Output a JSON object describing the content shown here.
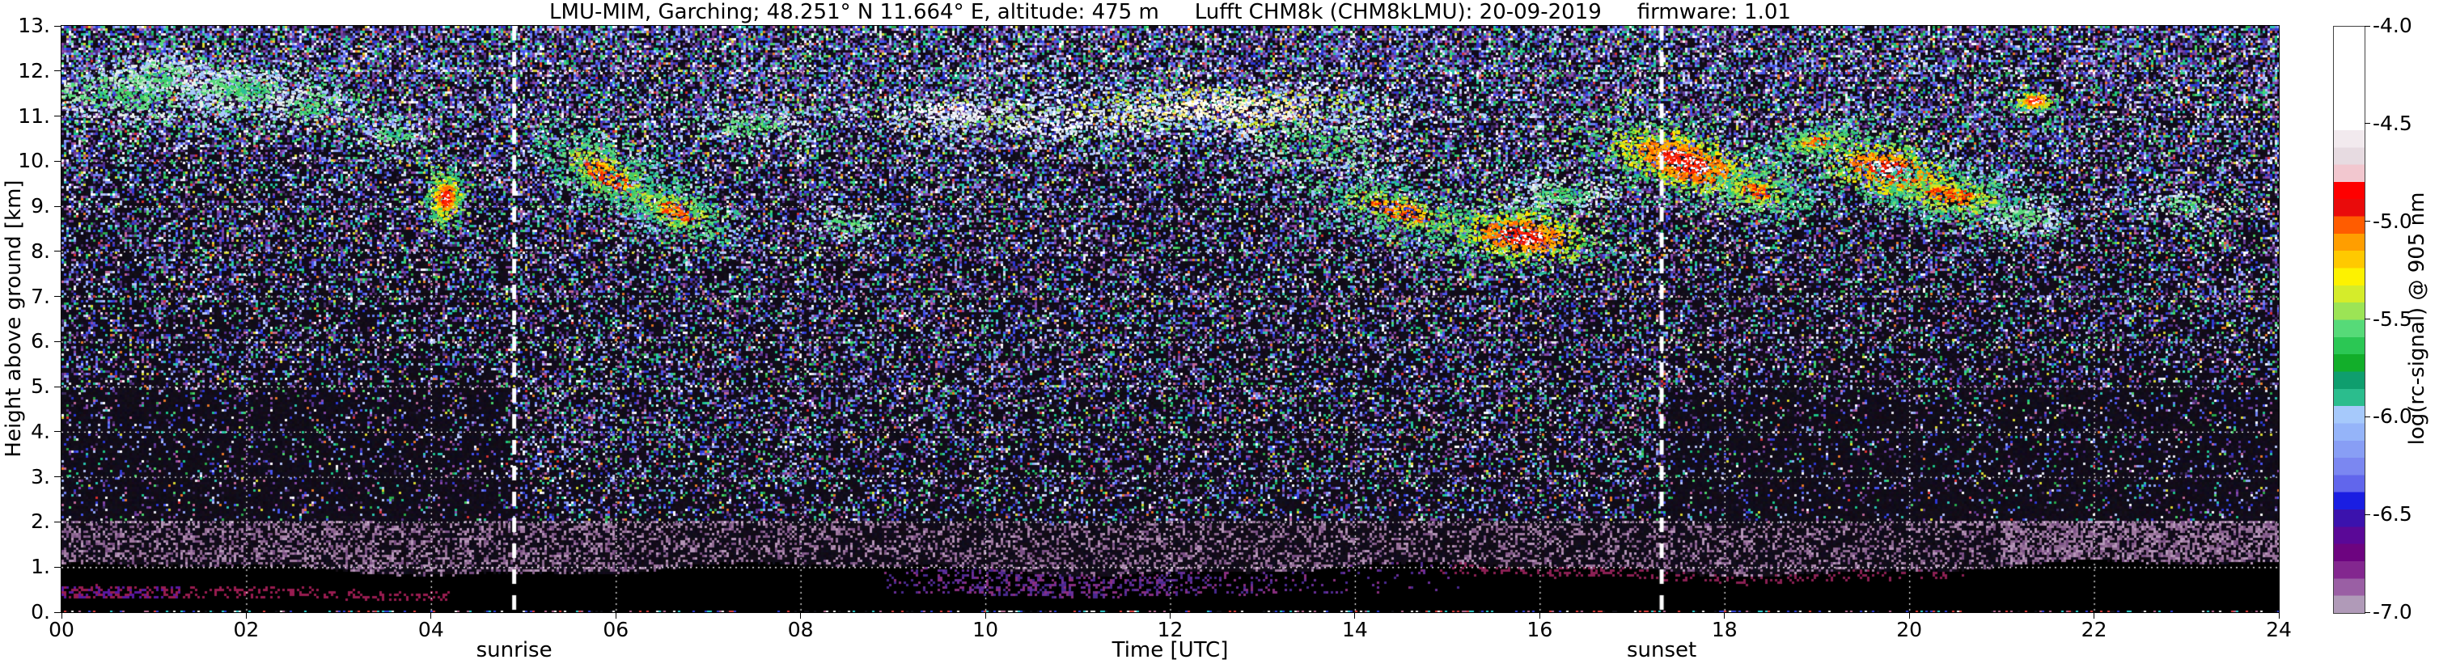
{
  "title": {
    "parts": [
      "LMU-MIM, Garching; 48.251° N 11.664° E, altitude: 475 m",
      "Lufft CHM8k (CHM8kLMU): 20-09-2019",
      "firmware: 1.01"
    ]
  },
  "chart_data": {
    "type": "heatmap",
    "title": "LMU-MIM, Garching; 48.251° N 11.664° E, altitude: 475 m    Lufft CHM8k (CHM8kLMU): 20-09-2019    firmware: 1.01",
    "station": "LMU-MIM, Garching",
    "coordinates": "48.251° N 11.664° E",
    "altitude_m": 475,
    "instrument": "Lufft CHM8k (CHM8kLMU)",
    "date": "20-09-2019",
    "firmware": "1.01",
    "xlabel": "Time [UTC]",
    "ylabel": "Height above ground [km]",
    "colorbar_label": "log(rc-signal) @ 905 nm",
    "x_range_hours": [
      0,
      24
    ],
    "y_range_km": [
      0,
      13
    ],
    "x_ticks": [
      "00",
      "02",
      "04",
      "06",
      "08",
      "10",
      "12",
      "14",
      "16",
      "18",
      "20",
      "22",
      "24"
    ],
    "y_ticks": [
      "0.",
      "1.",
      "2.",
      "3.",
      "4.",
      "5.",
      "6.",
      "7.",
      "8.",
      "9.",
      "10.",
      "11.",
      "12.",
      "13."
    ],
    "grid": {
      "x_step_hours": 2,
      "y_step_km": 1,
      "style": "white dashed"
    },
    "colorbar_ticks": [
      "-4.0",
      "-4.5",
      "-5.0",
      "-5.5",
      "-6.0",
      "-6.5",
      "-7.0"
    ],
    "colorbar_range": [
      -4.0,
      -7.0
    ],
    "colormap_colors": [
      "#ffffff",
      "#ffffff",
      "#ffffff",
      "#ffffff",
      "#ffffff",
      "#ffffff",
      "#f2eaee",
      "#e7dbe1",
      "#f2c7cf",
      "#fe0000",
      "#e90b0b",
      "#ff5c00",
      "#ff9e00",
      "#ffc900",
      "#fdf200",
      "#d5ec2a",
      "#9ce455",
      "#56da78",
      "#2bc754",
      "#12ae2a",
      "#0f9e6e",
      "#2bbd8d",
      "#a6c9fb",
      "#95b4f9",
      "#889ef5",
      "#7b87f1",
      "#6166ec",
      "#1a1ee2",
      "#3b12ad",
      "#5a0897",
      "#6d0480",
      "#83278f",
      "#9a5fa4",
      "#b09ab8"
    ],
    "annotations": [
      {
        "label": "sunrise",
        "hour_utc": 4.9
      },
      {
        "label": "sunset",
        "hour_utc": 17.32
      }
    ],
    "boundary_layer": {
      "description": "continuous aerosol / mixed layer from ground, strong backscatter (blue, log(rc-signal) ~ -6)",
      "top_km_mean": 1.0,
      "top_km_variation": 0.25,
      "cap_color_note": "thin crimson/magenta fringe at layer top; mauve speckle up to ~2 km; maroon body with blue patches after ~21 UTC"
    },
    "cloud_layers": [
      {
        "hour": 0.7,
        "height_km": 11.5,
        "sigma_h": 0.75,
        "sigma_km": 0.38,
        "tilt": 0,
        "points": 700,
        "type": "weak"
      },
      {
        "hour": 1.05,
        "height_km": 11.9,
        "sigma_h": 0.35,
        "sigma_km": 0.25,
        "tilt": 0,
        "points": 300,
        "type": "weak"
      },
      {
        "hour": 1.95,
        "height_km": 11.6,
        "sigma_h": 0.45,
        "sigma_km": 0.3,
        "tilt": 0,
        "points": 450,
        "type": "weak"
      },
      {
        "hour": 2.7,
        "height_km": 11.2,
        "sigma_h": 0.3,
        "sigma_km": 0.35,
        "tilt": 0,
        "points": 220,
        "type": "weak"
      },
      {
        "hour": 3.6,
        "height_km": 10.6,
        "sigma_h": 0.2,
        "sigma_km": 0.2,
        "tilt": 0,
        "points": 120,
        "type": "weak"
      },
      {
        "hour": 4.15,
        "height_km": 9.2,
        "sigma_h": 0.1,
        "sigma_km": 0.3,
        "tilt": 0,
        "points": 420,
        "type": "strong"
      },
      {
        "hour": 5.9,
        "height_km": 9.7,
        "sigma_h": 0.45,
        "sigma_km": 0.45,
        "tilt": -0.9,
        "points": 750,
        "type": "mixed"
      },
      {
        "hour": 6.65,
        "height_km": 8.9,
        "sigma_h": 0.35,
        "sigma_km": 0.35,
        "tilt": -0.6,
        "points": 450,
        "type": "mixed"
      },
      {
        "hour": 7.5,
        "height_km": 10.8,
        "sigma_h": 0.4,
        "sigma_km": 0.25,
        "tilt": 0,
        "points": 220,
        "type": "weak"
      },
      {
        "hour": 8.5,
        "height_km": 8.6,
        "sigma_h": 0.25,
        "sigma_km": 0.2,
        "tilt": 0,
        "points": 110,
        "type": "weak"
      },
      {
        "hour": 9.6,
        "height_km": 11.1,
        "sigma_h": 0.6,
        "sigma_km": 0.22,
        "tilt": 0,
        "points": 320,
        "type": "white"
      },
      {
        "hour": 11.1,
        "height_km": 10.9,
        "sigma_h": 0.9,
        "sigma_km": 0.28,
        "tilt": 0.15,
        "points": 450,
        "type": "white"
      },
      {
        "hour": 12.6,
        "height_km": 11.2,
        "sigma_h": 1.1,
        "sigma_km": 0.3,
        "tilt": 0,
        "points": 850,
        "type": "white-strong"
      },
      {
        "hour": 13.6,
        "height_km": 10.4,
        "sigma_h": 0.7,
        "sigma_km": 0.45,
        "tilt": -0.3,
        "points": 450,
        "type": "weak"
      },
      {
        "hour": 14.5,
        "height_km": 8.9,
        "sigma_h": 0.6,
        "sigma_km": 0.35,
        "tilt": -0.5,
        "points": 650,
        "type": "mixed"
      },
      {
        "hour": 15.8,
        "height_km": 8.35,
        "sigma_h": 0.45,
        "sigma_km": 0.35,
        "tilt": -0.2,
        "points": 850,
        "type": "strong"
      },
      {
        "hour": 16.25,
        "height_km": 9.3,
        "sigma_h": 0.35,
        "sigma_km": 0.25,
        "tilt": 0,
        "points": 260,
        "type": "weak"
      },
      {
        "hour": 17.55,
        "height_km": 10.0,
        "sigma_h": 0.5,
        "sigma_km": 0.4,
        "tilt": -0.55,
        "points": 1300,
        "type": "strong"
      },
      {
        "hour": 18.35,
        "height_km": 9.35,
        "sigma_h": 0.3,
        "sigma_km": 0.3,
        "tilt": -0.3,
        "points": 380,
        "type": "mixed"
      },
      {
        "hour": 19.0,
        "height_km": 10.45,
        "sigma_h": 0.3,
        "sigma_km": 0.2,
        "tilt": 0.3,
        "points": 300,
        "type": "mixed"
      },
      {
        "hour": 19.8,
        "height_km": 9.8,
        "sigma_h": 0.45,
        "sigma_km": 0.35,
        "tilt": -0.4,
        "points": 800,
        "type": "strong"
      },
      {
        "hour": 20.45,
        "height_km": 9.25,
        "sigma_h": 0.5,
        "sigma_km": 0.35,
        "tilt": -0.3,
        "points": 700,
        "type": "mixed"
      },
      {
        "hour": 21.25,
        "height_km": 8.75,
        "sigma_h": 0.25,
        "sigma_km": 0.2,
        "tilt": 0,
        "points": 200,
        "type": "weak"
      },
      {
        "hour": 21.35,
        "height_km": 11.35,
        "sigma_h": 0.12,
        "sigma_km": 0.12,
        "tilt": 0,
        "points": 170,
        "type": "strong"
      },
      {
        "hour": 23.0,
        "height_km": 9.0,
        "sigma_h": 0.3,
        "sigma_km": 0.25,
        "tilt": 0,
        "points": 130,
        "type": "weak"
      }
    ],
    "render": {
      "speckle_purples": [
        "#3c2a5e",
        "#54308a",
        "#6a3e9e",
        "#8a48a8"
      ],
      "speckle_blues": [
        "#2c38d4",
        "#4656ee",
        "#6e80f2"
      ],
      "speckle_lightblues": [
        "#93a8f4",
        "#b4c4f8"
      ],
      "speckle_greens": [
        "#2aa84a",
        "#4cd46a",
        "#1cc488"
      ],
      "speckle_teal": [
        "#2cc4b0"
      ],
      "speckle_white": [
        "#e6e6ee",
        "#ffffff"
      ],
      "speckle_pink": [
        "#c06898"
      ],
      "speckle_yellow": [
        "#d8d832"
      ],
      "speckle_orange": [
        "#e87828"
      ],
      "speckle_red": [
        "#d83030"
      ],
      "fringe_crimson": [
        "#9c1846",
        "#b02858",
        "#7c1038"
      ],
      "mauve_haze": [
        "#8c6890",
        "#a078a0",
        "#7a4f84",
        "#b596b8"
      ],
      "bottom_row_base": "#9a95a0",
      "bottom_row_specks": [
        "#101018",
        "#d84040",
        "#30c8c8",
        "#3040d0",
        "#e8e8e8",
        "#b06890"
      ],
      "cloud_palettes": {
        "strong": [
          [
            "#f21000",
            "#ff2a00",
            "#ffffff"
          ],
          [
            "#ff6a00",
            "#ffb400"
          ],
          [
            "#ffe400",
            "#bfe22a",
            "#44cc55"
          ],
          [
            "#3ac468",
            "#2abf9a",
            "#9ce455"
          ]
        ],
        "mixed": [
          [
            "#ff7a00",
            "#ffd000",
            "#ff3000"
          ],
          [
            "#cfe22a",
            "#4ccf5e"
          ],
          [
            "#2abf96",
            "#63d97a"
          ],
          [
            "#2abf96",
            "#63d97a",
            "#a6c9fb"
          ]
        ],
        "weak": [
          [
            "#3ecf5e",
            "#2abf96",
            "#7ade7a"
          ],
          [
            "#56da78",
            "#b4e4c0"
          ],
          [
            "#a6c9fb",
            "#e8f0e8"
          ],
          [
            "#56da78",
            "#a6c9fb"
          ]
        ],
        "white": [
          [
            "#f2f2f4",
            "#ffffff",
            "#e4e8f0"
          ],
          [
            "#d8e0e8",
            "#ffffff"
          ],
          [
            "#9ce455",
            "#a6c9fb"
          ],
          [
            "#d8e0e8",
            "#a6c9fb"
          ]
        ],
        "white-strong": [
          [
            "#ffffff",
            "#fff2b0"
          ],
          [
            "#ffe86a",
            "#f4f4f4"
          ],
          [
            "#cfe22a",
            "#a6d4f8"
          ],
          [
            "#ffffff",
            "#a6d4f8"
          ]
        ]
      }
    }
  }
}
